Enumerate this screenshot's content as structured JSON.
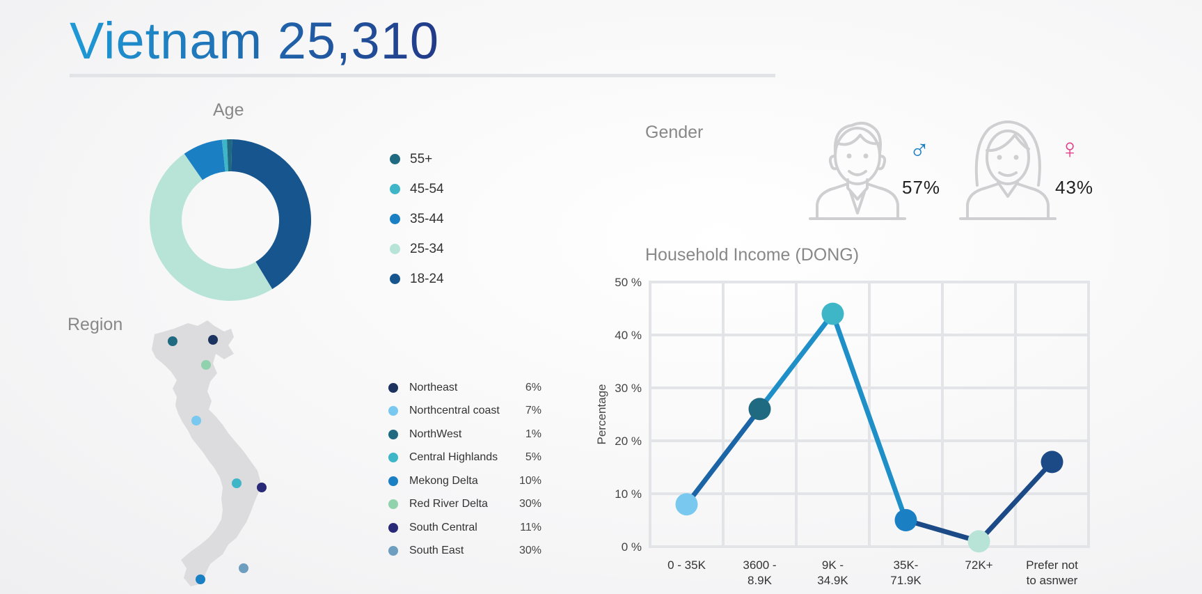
{
  "title": "Vietnam 25,310",
  "age": {
    "title": "Age",
    "legend": [
      {
        "label": "55+",
        "color": "#1f6a80"
      },
      {
        "label": "45-54",
        "color": "#3fb6c7"
      },
      {
        "label": "35-44",
        "color": "#1b7fc4"
      },
      {
        "label": "25-34",
        "color": "#b7e4d6"
      },
      {
        "label": "18-24",
        "color": "#17558e"
      }
    ]
  },
  "region": {
    "title": "Region",
    "items": [
      {
        "label": "Northeast",
        "value": "6%",
        "color": "#1b335e"
      },
      {
        "label": "Northcentral coast",
        "value": "7%",
        "color": "#78c8f0"
      },
      {
        "label": "NorthWest",
        "value": "1%",
        "color": "#1f6a80"
      },
      {
        "label": "Central Highlands",
        "value": "5%",
        "color": "#3fb6c7"
      },
      {
        "label": "Mekong Delta",
        "value": "10%",
        "color": "#1b7fc4"
      },
      {
        "label": "Red River Delta",
        "value": "30%",
        "color": "#8fd2ac"
      },
      {
        "label": "South Central",
        "value": "11%",
        "color": "#282a78"
      },
      {
        "label": "South East",
        "value": "30%",
        "color": "#6d9dbf"
      }
    ]
  },
  "gender": {
    "title": "Gender",
    "male": {
      "symbol": "♂",
      "value": "57%",
      "color": "#1b7fc4"
    },
    "female": {
      "symbol": "♀",
      "value": "43%",
      "color": "#e2408a"
    }
  },
  "income": {
    "title": "Household Income (DONG)"
  },
  "chart_data": [
    {
      "type": "pie",
      "title": "Age",
      "donut": true,
      "labels": [
        "18-24",
        "25-34",
        "35-44",
        "45-54",
        "55+"
      ],
      "values": [
        41,
        49,
        8,
        1,
        1
      ],
      "colors": [
        "#17558e",
        "#b7e4d6",
        "#1b7fc4",
        "#3fb6c7",
        "#1f6a80"
      ]
    },
    {
      "type": "line",
      "title": "Household Income (DONG)",
      "categories": [
        "0 - 35K",
        "3600 - 8.9K",
        "9K - 34.9K",
        "35K- 71.9K",
        "72K+",
        "Prefer not to asnwer"
      ],
      "category_lines": [
        [
          "0 - 35K"
        ],
        [
          "3600 -",
          "8.9K"
        ],
        [
          "9K -",
          "34.9K"
        ],
        [
          "35K-",
          "71.9K"
        ],
        [
          "72K+"
        ],
        [
          "Prefer not",
          "to asnwer"
        ]
      ],
      "values": [
        8,
        26,
        44,
        5,
        1,
        16
      ],
      "point_colors": [
        "#78c8f0",
        "#1f6a80",
        "#3fb6c7",
        "#1b7fc4",
        "#b7e4d6",
        "#1c4a86"
      ],
      "ylabel": "Percentage",
      "ylim": [
        0,
        50
      ],
      "yticks": [
        "0 %",
        "10 %",
        "20 %",
        "30 %",
        "40 %",
        "50 %"
      ],
      "grid": true
    }
  ]
}
